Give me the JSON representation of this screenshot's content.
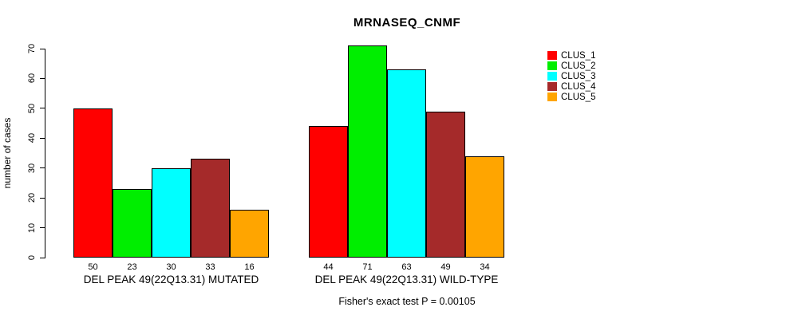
{
  "chart_data": {
    "type": "bar",
    "title": "MRNASEQ_CNMF",
    "ylabel": "number of cases",
    "xlabel": "",
    "ylim": [
      0,
      70
    ],
    "yticks": [
      0,
      10,
      20,
      30,
      40,
      50,
      60,
      70
    ],
    "grid": false,
    "legend_position": "right",
    "series": [
      {
        "name": "CLUS_1",
        "color": "#FF0000"
      },
      {
        "name": "CLUS_2",
        "color": "#00EE00"
      },
      {
        "name": "CLUS_3",
        "color": "#00FFFF"
      },
      {
        "name": "CLUS_4",
        "color": "#A52A2A"
      },
      {
        "name": "CLUS_5",
        "color": "#FFA500"
      }
    ],
    "groups": [
      {
        "label": "DEL PEAK 49(22Q13.31) MUTATED",
        "values": [
          50,
          23,
          30,
          33,
          16
        ]
      },
      {
        "label": "DEL PEAK 49(22Q13.31) WILD-TYPE",
        "values": [
          44,
          71,
          63,
          49,
          34
        ]
      }
    ],
    "footnote": "Fisher's exact test P = 0.00105"
  }
}
